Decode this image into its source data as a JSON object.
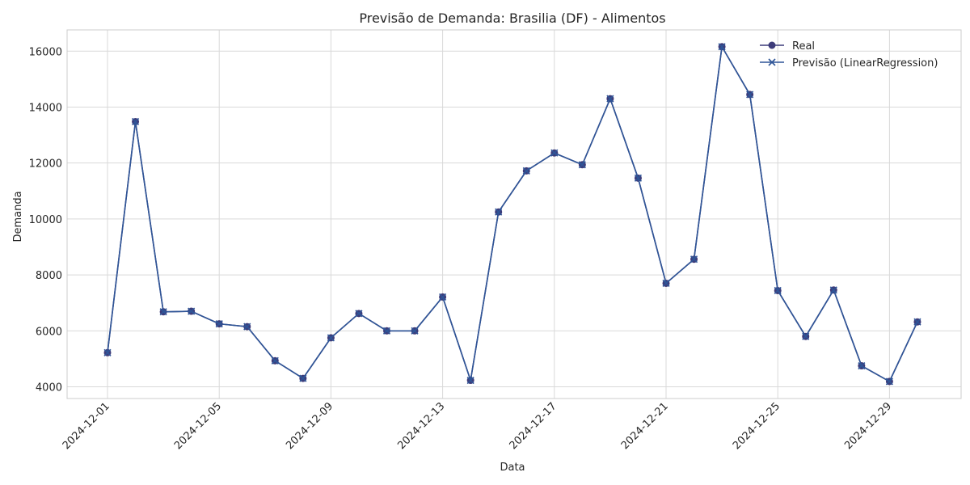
{
  "chart_data": {
    "type": "line",
    "title": "Previsão de Demanda: Brasilia (DF) - Alimentos",
    "xlabel": "Data",
    "ylabel": "Demanda",
    "x": [
      "2024-12-01",
      "2024-12-02",
      "2024-12-03",
      "2024-12-04",
      "2024-12-05",
      "2024-12-06",
      "2024-12-07",
      "2024-12-08",
      "2024-12-09",
      "2024-12-10",
      "2024-12-11",
      "2024-12-12",
      "2024-12-13",
      "2024-12-14",
      "2024-12-15",
      "2024-12-16",
      "2024-12-17",
      "2024-12-18",
      "2024-12-19",
      "2024-12-20",
      "2024-12-21",
      "2024-12-22",
      "2024-12-23",
      "2024-12-24",
      "2024-12-25",
      "2024-12-26",
      "2024-12-27",
      "2024-12-28",
      "2024-12-29",
      "2024-12-30"
    ],
    "series": [
      {
        "name": "Real",
        "marker": "circle",
        "color": "#3d3c7a",
        "values": [
          5220,
          13480,
          6680,
          6700,
          6250,
          6150,
          4930,
          4300,
          5750,
          6620,
          6000,
          6000,
          7210,
          4230,
          10250,
          11720,
          12360,
          11940,
          14300,
          11460,
          7700,
          8560,
          16160,
          14450,
          7440,
          5800,
          7460,
          4750,
          4190,
          6320
        ]
      },
      {
        "name": "Previsão (LinearRegression)",
        "marker": "x",
        "color": "#2f5597",
        "values": [
          5220,
          13480,
          6680,
          6700,
          6250,
          6150,
          4930,
          4300,
          5750,
          6620,
          6000,
          6000,
          7210,
          4230,
          10250,
          11720,
          12360,
          11940,
          14300,
          11460,
          7700,
          8560,
          16160,
          14450,
          7440,
          5800,
          7460,
          4750,
          4190,
          6320
        ]
      }
    ],
    "xticks": [
      "2024-12-01",
      "2024-12-05",
      "2024-12-09",
      "2024-12-13",
      "2024-12-17",
      "2024-12-21",
      "2024-12-25",
      "2024-12-29"
    ],
    "yticks": [
      4000,
      6000,
      8000,
      10000,
      12000,
      14000,
      16000
    ],
    "ylim": [
      3580,
      16760
    ],
    "grid": true,
    "legend_position": "top-right"
  }
}
